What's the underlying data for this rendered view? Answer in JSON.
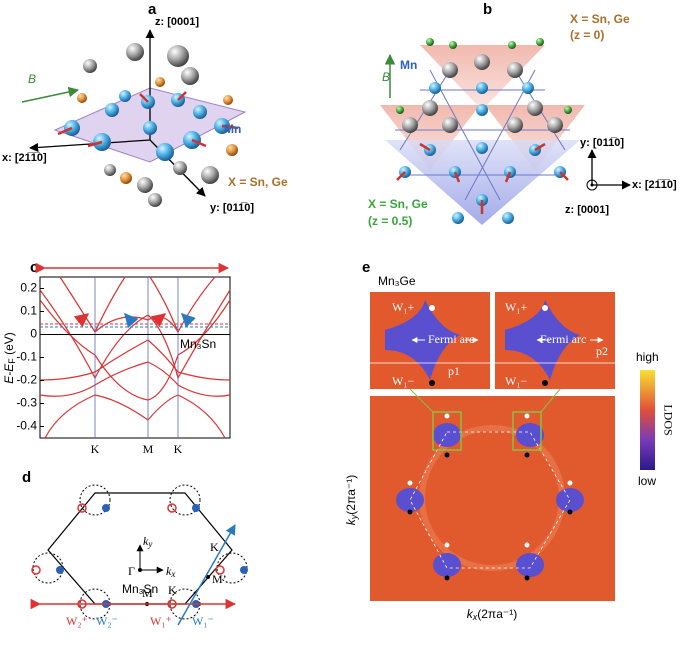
{
  "panels": {
    "a": {
      "label": "a",
      "z_axis": "z: [0001]",
      "x_axis": "x: [21̅1̅0]",
      "y_axis": "y: [011̅0]",
      "field": "B",
      "mn": "Mn",
      "x_atom": "X = Sn, Ge"
    },
    "b": {
      "label": "b",
      "x_atom_top": "X = Sn, Ge",
      "z_top": "(z = 0)",
      "field": "B",
      "mn": "Mn",
      "y_axis": "y: [011̅0]",
      "x_axis": "x: [21̅1̅0]",
      "z_axis": "z: [0001]",
      "x_atom_bottom": "X = Sn, Ge",
      "z_bottom": "(z = 0.5)"
    },
    "c": {
      "label": "c",
      "compound": "Mn₃Sn",
      "y_label": [
        "E-E",
        "F",
        " (eV)"
      ],
      "ylim": [
        -0.45,
        0.25
      ],
      "yticks": [
        0.2,
        0.1,
        0,
        -0.1,
        -0.2,
        -0.3,
        -0.4
      ],
      "kpoints": [
        "K",
        "M",
        "K"
      ]
    },
    "d": {
      "label": "d",
      "ky": [
        "k",
        "y"
      ],
      "kx": [
        "k",
        "x"
      ],
      "gamma": "Γ",
      "compound": "Mn₃Sn",
      "k_top": "K",
      "m_prime": "M’",
      "k_bottom": "K",
      "m": "M",
      "w2p": "W₂⁺",
      "w2m": "W₂⁻",
      "w1p": "W₁⁺",
      "w1m": "W₁⁻"
    },
    "e": {
      "label": "e",
      "compound": "Mn₃Ge",
      "w1p_left": "W₁+",
      "w1m_left": "W₁−",
      "arc_left": "Fermi arc",
      "p1": "p1",
      "w1p_right": "W₁+",
      "w1m_right": "W₁−",
      "arc_right": "Fermi arc",
      "p2": "p2",
      "cb_high": "high",
      "cb_title": "LDOS",
      "cb_low": "low",
      "ky_label": [
        "k",
        "y",
        "(2πa⁻¹)"
      ],
      "kx_label": [
        "k",
        "x",
        "(2πa⁻¹)"
      ]
    }
  }
}
